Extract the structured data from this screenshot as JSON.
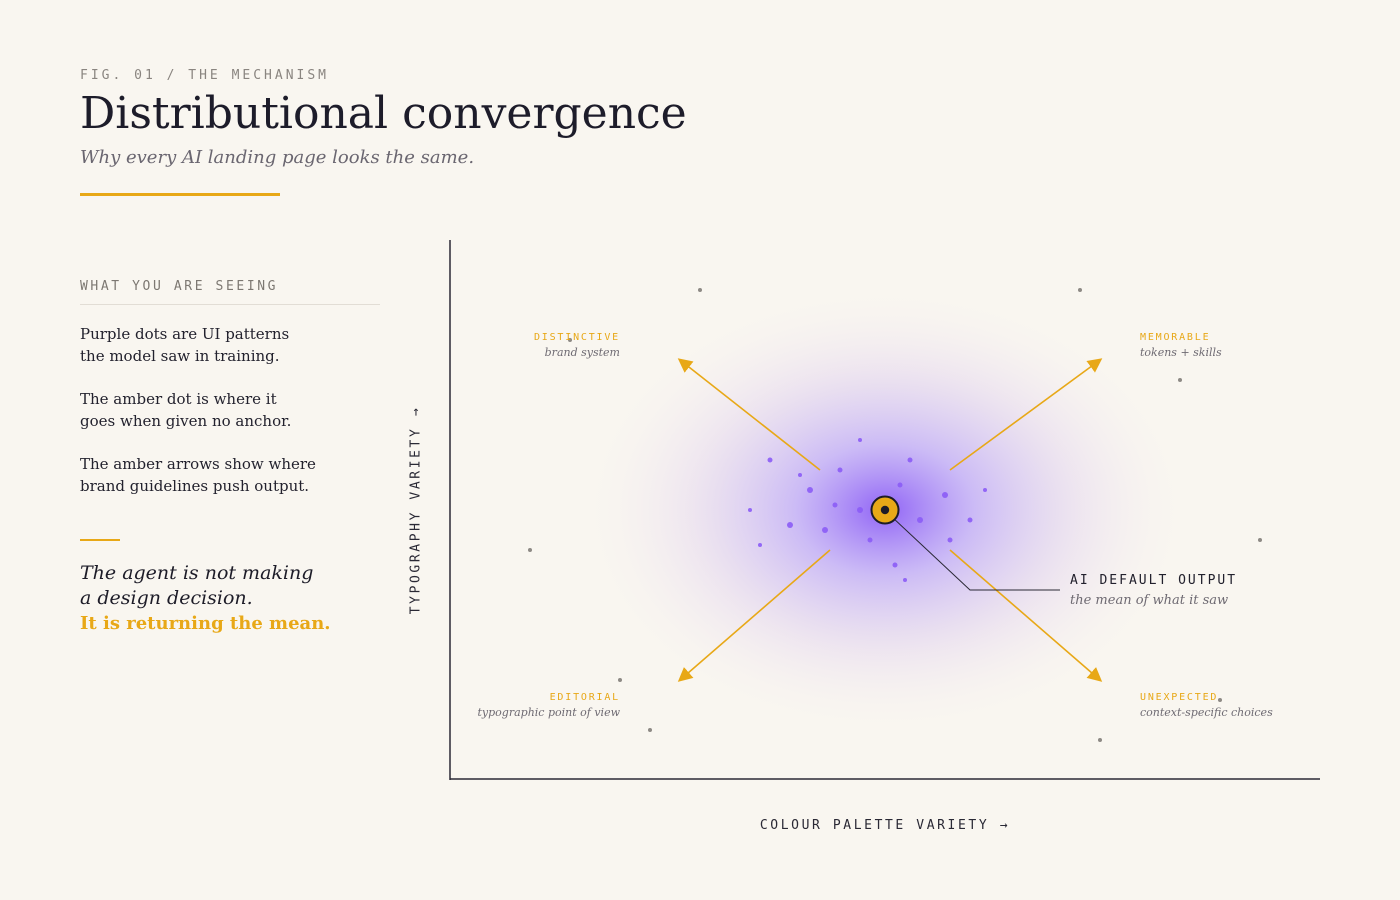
{
  "header": {
    "fig_label": "FIG. 01 / THE MECHANISM",
    "title": "Distributional convergence",
    "subtitle": "Why every AI landing page looks the same."
  },
  "sidebar": {
    "heading": "WHAT YOU ARE SEEING",
    "paragraphs": [
      [
        "Purple dots are UI patterns",
        "the model saw in training."
      ],
      [
        "The amber dot is where it",
        "goes when given no anchor."
      ],
      [
        "The amber arrows show where",
        "brand guidelines push output."
      ]
    ],
    "quote": {
      "line1": "The agent is not making",
      "line2": "a design decision.",
      "line3": "It is returning the mean."
    }
  },
  "diagram": {
    "x_axis_label": "COLOUR PALETTE VARIETY →",
    "y_axis_label": "TYPOGRAPHY VARIETY →",
    "corners": {
      "top_left": {
        "label": "DISTINCTIVE",
        "sub": "brand system"
      },
      "top_right": {
        "label": "MEMORABLE",
        "sub": "tokens + skills"
      },
      "bottom_left": {
        "label": "EDITORIAL",
        "sub": "typographic point of view"
      },
      "bottom_right": {
        "label": "UNEXPECTED",
        "sub": "context-specific choices"
      }
    },
    "callout": {
      "title": "AI DEFAULT OUTPUT",
      "sub": "the mean of what it saw"
    },
    "colors": {
      "accent": "#e8a817",
      "purple": "#8b5cf6",
      "outlier": "#8e8a85",
      "axis": "#2a2935",
      "background": "#f9f6f0"
    },
    "legend_items": [
      "Purple dots",
      "Amber dot",
      "Amber arrows"
    ]
  }
}
